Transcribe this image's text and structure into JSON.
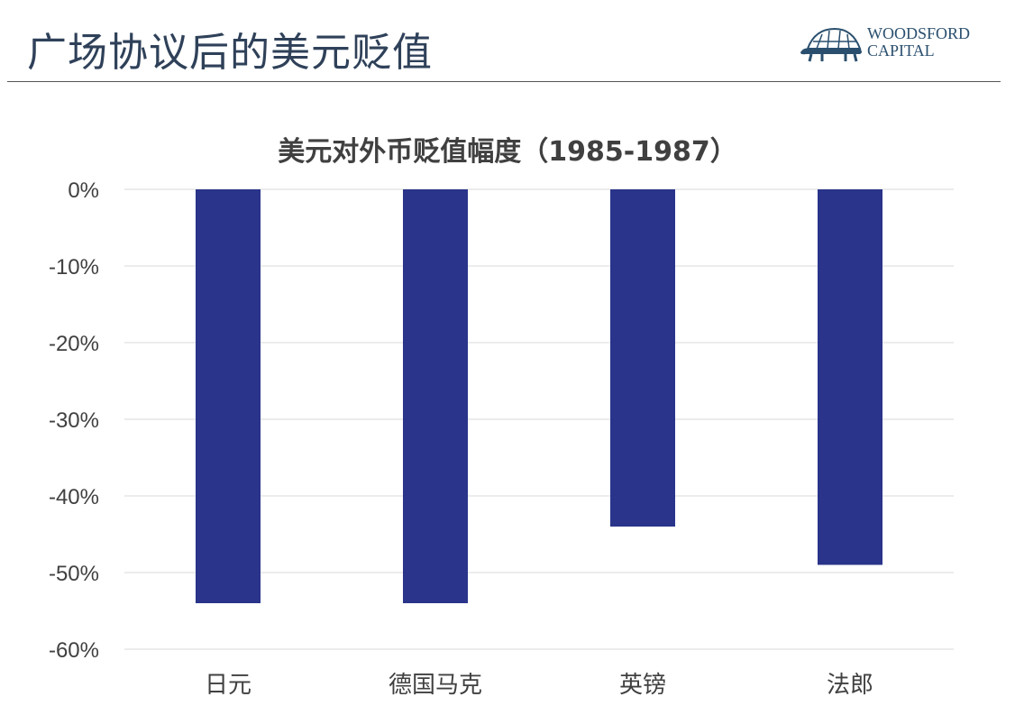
{
  "slide": {
    "title": "广场协议后的美元贬值",
    "logo": {
      "line1": "WOODSFORD",
      "line2": "CAPITAL"
    }
  },
  "chart_data": {
    "type": "bar",
    "title": "美元对外币贬值幅度（1985-1987）",
    "categories": [
      "日元",
      "德国马克",
      "英镑",
      "法郎"
    ],
    "values": [
      -54,
      -54,
      -44,
      -49
    ],
    "ylim": [
      -60,
      0
    ],
    "yticks": [
      0,
      -10,
      -20,
      -30,
      -40,
      -50,
      -60
    ],
    "ytick_labels": [
      "0%",
      "-10%",
      "-20%",
      "-30%",
      "-40%",
      "-50%",
      "-60%"
    ],
    "bar_color": "#29348a",
    "grid": true,
    "xlabel": "",
    "ylabel": ""
  }
}
